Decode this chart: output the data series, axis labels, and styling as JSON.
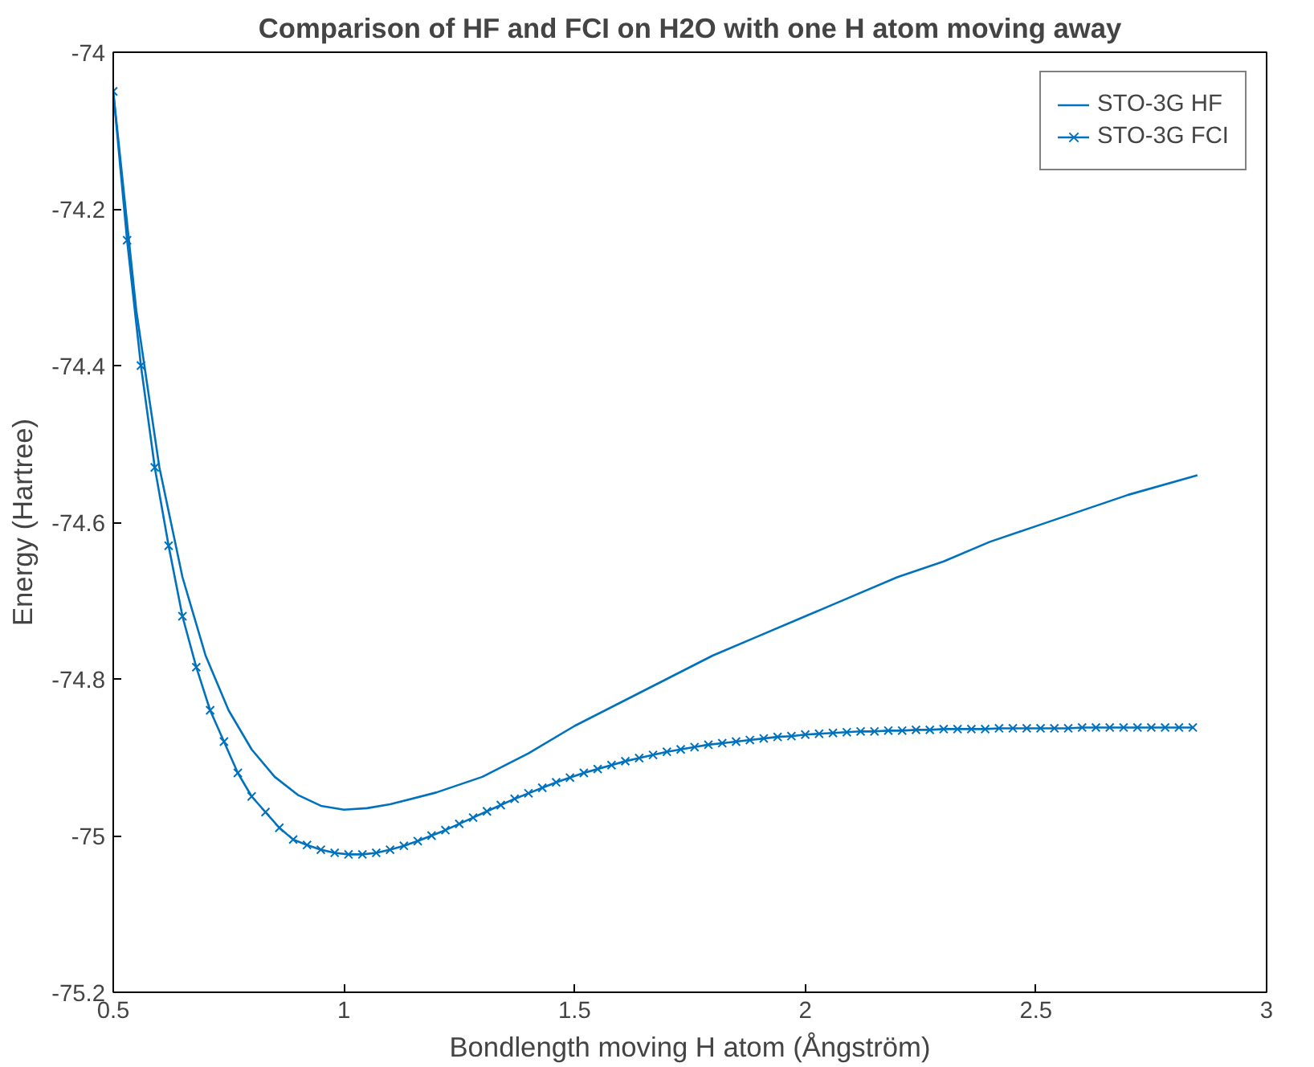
{
  "chart_data": {
    "type": "line",
    "title": "Comparison of HF and FCI on H2O with one H atom moving away",
    "xlabel": "Bondlength moving H atom (Ångström)",
    "ylabel": "Energy (Hartree)",
    "xlim": [
      0.5,
      3
    ],
    "ylim": [
      -75.2,
      -74
    ],
    "xticks": [
      0.5,
      1,
      1.5,
      2,
      2.5,
      3
    ],
    "yticks": [
      -75.2,
      -75,
      -74.8,
      -74.6,
      -74.4,
      -74.2,
      -74
    ],
    "grid": false,
    "legend": "top right",
    "series": [
      {
        "name": "STO-3G HF",
        "color": "#0072bd",
        "marker": "none",
        "x": [
          0.5,
          0.55,
          0.6,
          0.65,
          0.7,
          0.75,
          0.8,
          0.85,
          0.9,
          0.95,
          1.0,
          1.05,
          1.1,
          1.2,
          1.3,
          1.4,
          1.5,
          1.6,
          1.7,
          1.8,
          1.9,
          2.0,
          2.1,
          2.2,
          2.3,
          2.4,
          2.5,
          2.6,
          2.7,
          2.85
        ],
        "values": [
          -74.05,
          -74.33,
          -74.53,
          -74.67,
          -74.77,
          -74.84,
          -74.89,
          -74.925,
          -74.948,
          -74.962,
          -74.967,
          -74.965,
          -74.96,
          -74.945,
          -74.925,
          -74.895,
          -74.86,
          -74.83,
          -74.8,
          -74.77,
          -74.745,
          -74.72,
          -74.695,
          -74.67,
          -74.65,
          -74.625,
          -74.605,
          -74.585,
          -74.565,
          -74.54
        ]
      },
      {
        "name": "STO-3G FCI",
        "color": "#0072bd",
        "marker": "cross",
        "x": [
          0.5,
          0.53,
          0.56,
          0.59,
          0.62,
          0.65,
          0.68,
          0.71,
          0.74,
          0.77,
          0.8,
          0.83,
          0.86,
          0.89,
          0.92,
          0.95,
          0.98,
          1.01,
          1.04,
          1.07,
          1.1,
          1.13,
          1.16,
          1.19,
          1.22,
          1.25,
          1.28,
          1.31,
          1.34,
          1.37,
          1.4,
          1.43,
          1.46,
          1.49,
          1.52,
          1.55,
          1.58,
          1.61,
          1.64,
          1.67,
          1.7,
          1.73,
          1.76,
          1.79,
          1.82,
          1.85,
          1.88,
          1.91,
          1.94,
          1.97,
          2.0,
          2.03,
          2.06,
          2.09,
          2.12,
          2.15,
          2.18,
          2.21,
          2.24,
          2.27,
          2.3,
          2.33,
          2.36,
          2.39,
          2.42,
          2.45,
          2.48,
          2.51,
          2.54,
          2.57,
          2.6,
          2.63,
          2.66,
          2.69,
          2.72,
          2.75,
          2.78,
          2.81,
          2.84
        ],
        "values": [
          -74.05,
          -74.24,
          -74.4,
          -74.53,
          -74.63,
          -74.72,
          -74.785,
          -74.84,
          -74.88,
          -74.92,
          -74.95,
          -74.97,
          -74.99,
          -75.005,
          -75.012,
          -75.018,
          -75.022,
          -75.024,
          -75.024,
          -75.022,
          -75.018,
          -75.013,
          -75.007,
          -75.0,
          -74.993,
          -74.985,
          -74.977,
          -74.969,
          -74.961,
          -74.953,
          -74.946,
          -74.939,
          -74.932,
          -74.926,
          -74.92,
          -74.915,
          -74.91,
          -74.905,
          -74.901,
          -74.897,
          -74.893,
          -74.89,
          -74.887,
          -74.884,
          -74.882,
          -74.88,
          -74.878,
          -74.876,
          -74.874,
          -74.873,
          -74.871,
          -74.87,
          -74.869,
          -74.868,
          -74.867,
          -74.867,
          -74.866,
          -74.866,
          -74.865,
          -74.865,
          -74.864,
          -74.864,
          -74.864,
          -74.864,
          -74.863,
          -74.863,
          -74.863,
          -74.863,
          -74.863,
          -74.863,
          -74.862,
          -74.862,
          -74.862,
          -74.862,
          -74.862,
          -74.862,
          -74.862,
          -74.862,
          -74.862
        ]
      }
    ]
  }
}
